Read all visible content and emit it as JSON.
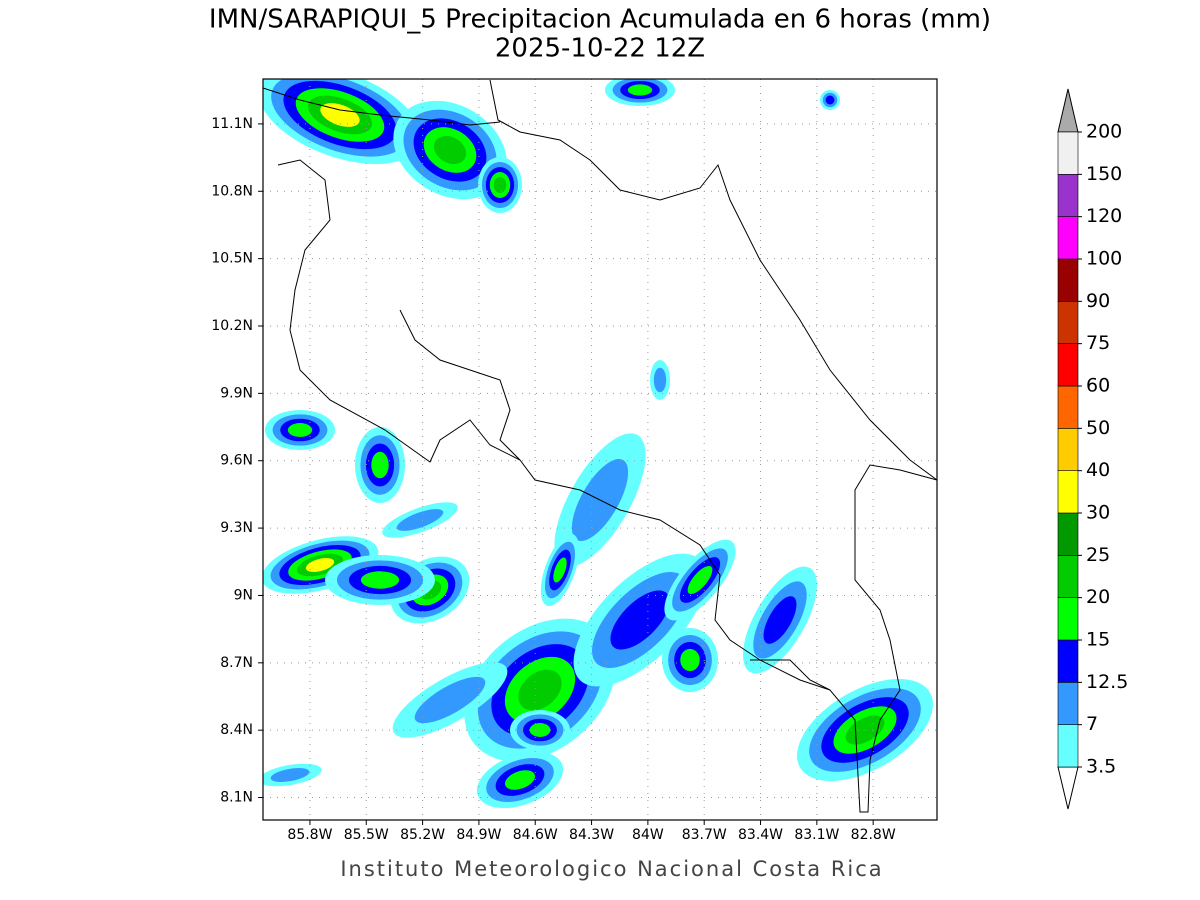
{
  "title": "IMN/SARAPIQUI_5 Precipitacion Acumulada en 6 horas (mm)",
  "subtitle": "2025-10-22 12Z",
  "map": {
    "lonlim": [
      -86.05,
      -82.46
    ],
    "latlim": [
      8.0,
      11.3
    ],
    "lat_ticks": [
      {
        "value": 11.1,
        "label": "11.1N"
      },
      {
        "value": 10.8,
        "label": "10.8N"
      },
      {
        "value": 10.5,
        "label": "10.5N"
      },
      {
        "value": 10.2,
        "label": "10.2N"
      },
      {
        "value": 9.9,
        "label": "9.9N"
      },
      {
        "value": 9.6,
        "label": "9.6N"
      },
      {
        "value": 9.3,
        "label": "9.3N"
      },
      {
        "value": 9,
        "label": "9N"
      },
      {
        "value": 8.7,
        "label": "8.7N"
      },
      {
        "value": 8.4,
        "label": "8.4N"
      },
      {
        "value": 8.1,
        "label": "8.1N"
      }
    ],
    "lon_ticks": [
      {
        "value": -85.8,
        "label": "85.8W"
      },
      {
        "value": -85.5,
        "label": "85.5W"
      },
      {
        "value": -85.2,
        "label": "85.2W"
      },
      {
        "value": -84.9,
        "label": "84.9W"
      },
      {
        "value": -84.6,
        "label": "84.6W"
      },
      {
        "value": -84.3,
        "label": "84.3W"
      },
      {
        "value": -84,
        "label": "84W"
      },
      {
        "value": -83.7,
        "label": "83.7W"
      },
      {
        "value": -83.4,
        "label": "83.4W"
      },
      {
        "value": -83.1,
        "label": "83.1W"
      },
      {
        "value": -82.8,
        "label": "82.8W"
      }
    ]
  },
  "colorbar": {
    "levels": [
      3.5,
      7,
      12.5,
      15,
      20,
      25,
      30,
      40,
      50,
      60,
      75,
      90,
      100,
      120,
      150,
      200
    ],
    "colors": [
      "#ffffff",
      "#66ffff",
      "#3399ff",
      "#0000ff",
      "#00ff00",
      "#00cc00",
      "#009900",
      "#ffff00",
      "#ffcc00",
      "#ff6600",
      "#ff0000",
      "#cc3300",
      "#990000",
      "#ff00ff",
      "#9933cc",
      "#f0f0f0",
      "#aaaaaa"
    ]
  },
  "footer": "Instituto Meteorologico Nacional Costa Rica"
}
